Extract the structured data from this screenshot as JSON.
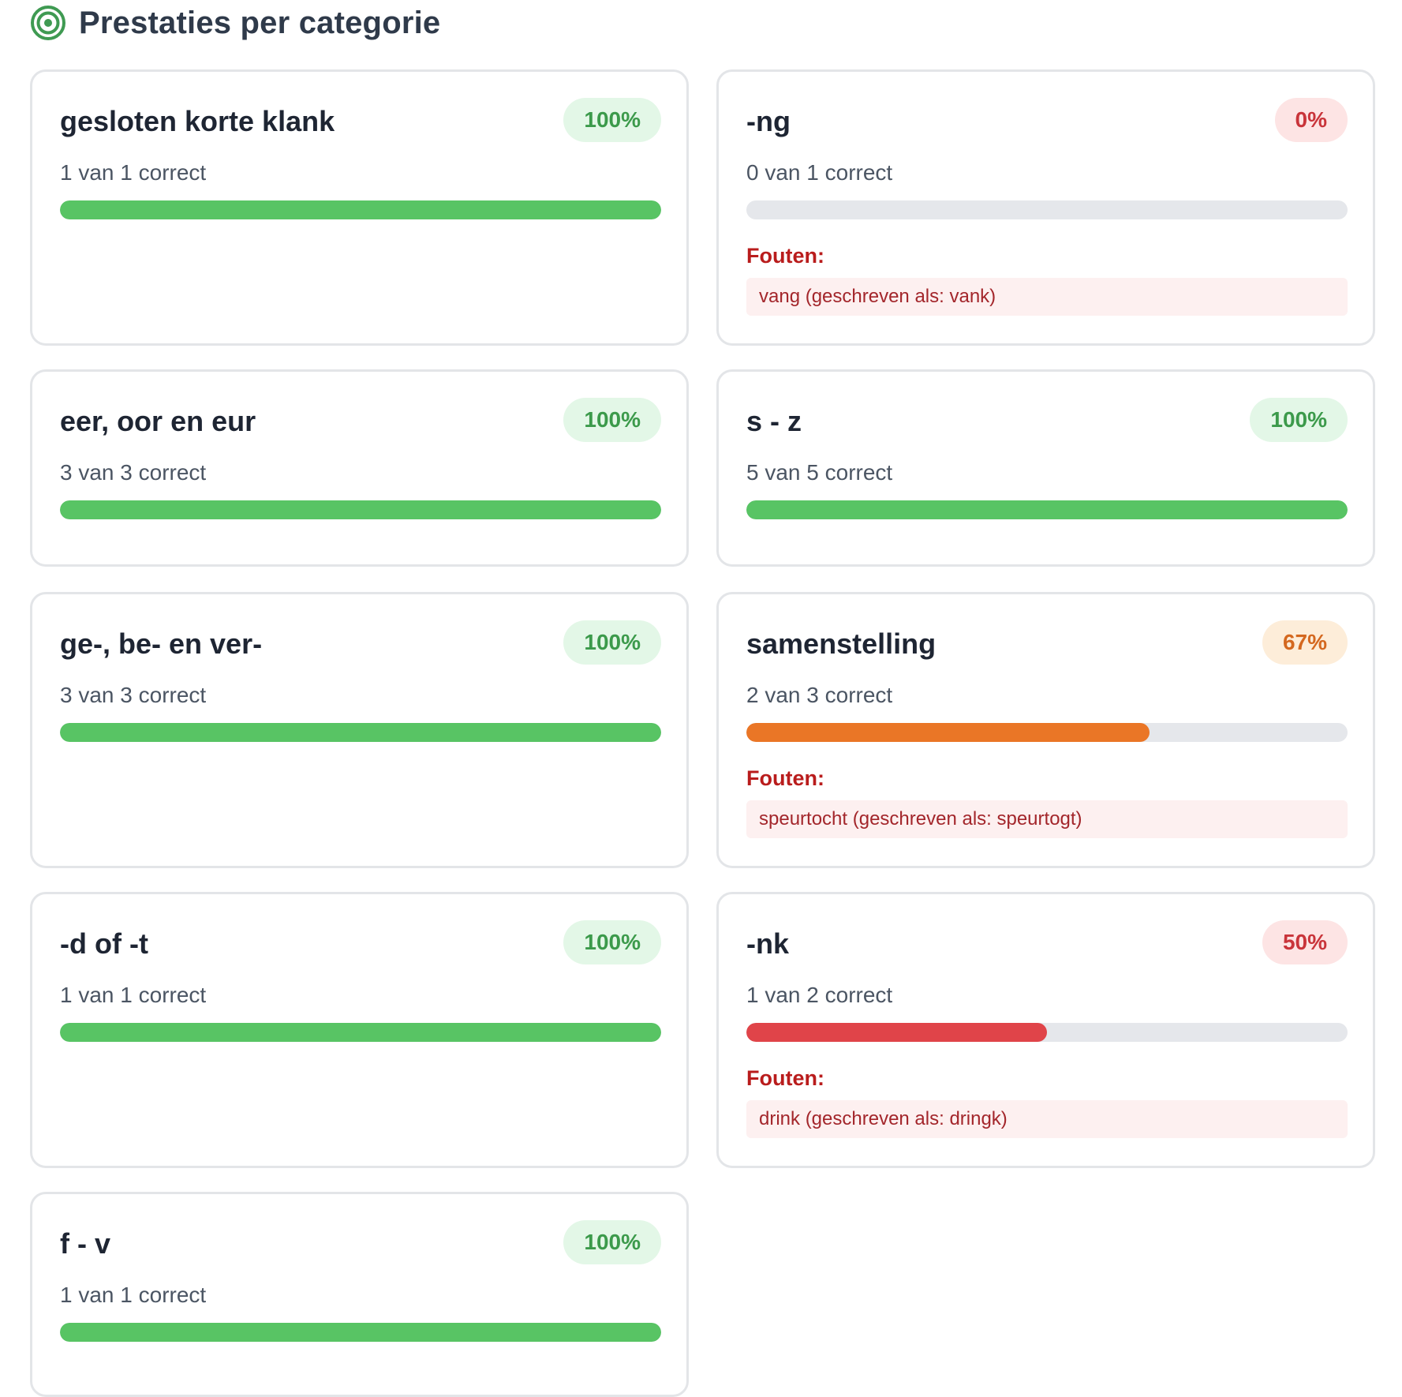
{
  "header": {
    "title": "Prestaties per categorie",
    "icon": "target-icon"
  },
  "colors": {
    "good": "#58c464",
    "bad": "#e04449",
    "mid": "#ea7626",
    "track": "#e5e7eb"
  },
  "categories": [
    {
      "title": "gesloten korte klank",
      "percent_label": "100%",
      "percent": 100,
      "status": "good",
      "count_text": "1 van 1 correct",
      "errors_label": "",
      "errors": []
    },
    {
      "title": "-ng",
      "percent_label": "0%",
      "percent": 0,
      "status": "bad",
      "count_text": "0 van 1 correct",
      "errors_label": "Fouten:",
      "errors": [
        "vang (geschreven als: vank)"
      ]
    },
    {
      "title": "eer, oor en eur",
      "percent_label": "100%",
      "percent": 100,
      "status": "good",
      "count_text": "3 van 3 correct",
      "errors_label": "",
      "errors": []
    },
    {
      "title": "s - z",
      "percent_label": "100%",
      "percent": 100,
      "status": "good",
      "count_text": "5 van 5 correct",
      "errors_label": "",
      "errors": []
    },
    {
      "title": "ge-, be- en ver-",
      "percent_label": "100%",
      "percent": 100,
      "status": "good",
      "count_text": "3 van 3 correct",
      "errors_label": "",
      "errors": []
    },
    {
      "title": "samenstelling",
      "percent_label": "67%",
      "percent": 67,
      "status": "mid",
      "count_text": "2 van 3 correct",
      "errors_label": "Fouten:",
      "errors": [
        "speurtocht (geschreven als: speurtogt)"
      ]
    },
    {
      "title": "-d of -t",
      "percent_label": "100%",
      "percent": 100,
      "status": "good",
      "count_text": "1 van 1 correct",
      "errors_label": "",
      "errors": []
    },
    {
      "title": "-nk",
      "percent_label": "50%",
      "percent": 50,
      "status": "bad",
      "count_text": "1 van 2 correct",
      "errors_label": "Fouten:",
      "errors": [
        "drink (geschreven als: dringk)"
      ]
    },
    {
      "title": "f - v",
      "percent_label": "100%",
      "percent": 100,
      "status": "good",
      "count_text": "1 van 1 correct",
      "errors_label": "",
      "errors": []
    }
  ]
}
